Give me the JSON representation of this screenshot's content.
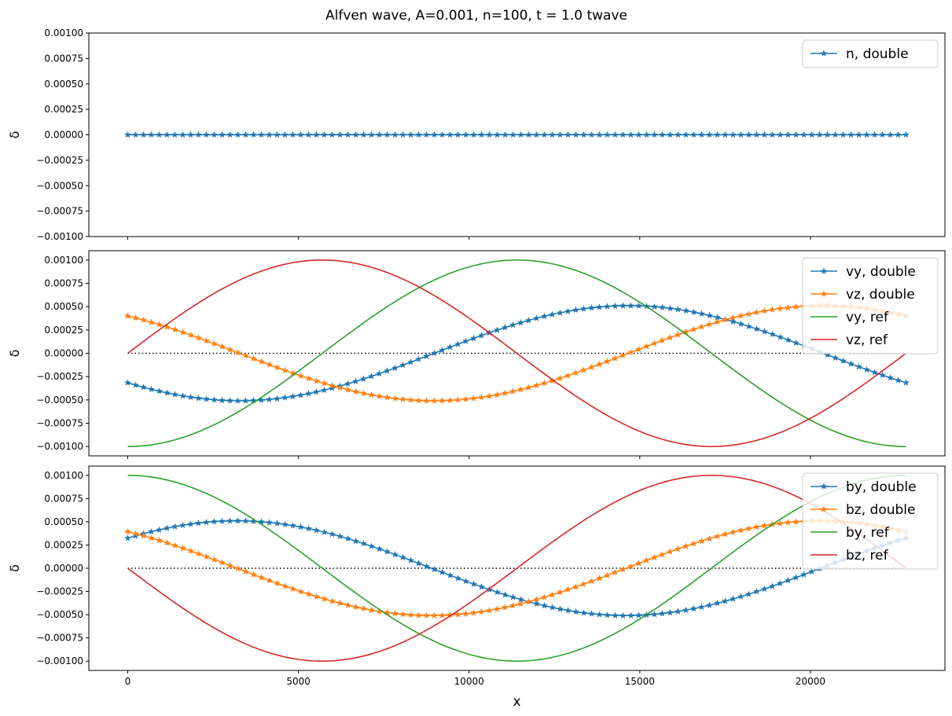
{
  "figure": {
    "title": "Alfven wave, A=0.001, n=100, t = 1.0 twave"
  },
  "colors": {
    "blue": "#1f77b4",
    "orange": "#ff7f0e",
    "green": "#2ca02c",
    "red": "#d62728",
    "zero_line": "#000000"
  },
  "chart_data": [
    {
      "type": "line",
      "panel": "top",
      "xlabel": "",
      "ylabel": "δ",
      "xlim": [
        -1140,
        23940
      ],
      "ylim": [
        -0.001,
        0.001
      ],
      "xticks": [
        0,
        5000,
        10000,
        15000,
        20000
      ],
      "show_xticklabels": false,
      "yticks": [
        -0.001,
        -0.00075,
        -0.0005,
        -0.00025,
        0,
        0.00025,
        0.0005,
        0.00075,
        0.001
      ],
      "ytick_labels": [
        "−0.00100",
        "−0.00075",
        "−0.00050",
        "−0.00025",
        "0.00000",
        "0.00025",
        "0.00050",
        "0.00075",
        "0.00100"
      ],
      "grid": false,
      "legend_position": "top-right",
      "zero_line": false,
      "series": [
        {
          "name": "n, double",
          "color": "#1f77b4",
          "marker": "star",
          "points": 100,
          "x_start": 0,
          "x_end": 22800,
          "amplitude": 0,
          "phase": 0
        }
      ]
    },
    {
      "type": "line",
      "panel": "middle",
      "xlabel": "",
      "ylabel": "δ",
      "xlim": [
        -1140,
        23940
      ],
      "ylim": [
        -0.0011,
        0.0011
      ],
      "xticks": [
        0,
        5000,
        10000,
        15000,
        20000
      ],
      "show_xticklabels": false,
      "yticks": [
        -0.001,
        -0.00075,
        -0.0005,
        -0.00025,
        0,
        0.00025,
        0.0005,
        0.00075,
        0.001
      ],
      "ytick_labels": [
        "−0.00100",
        "−0.00075",
        "−0.00050",
        "−0.00025",
        "0.00000",
        "0.00025",
        "0.00050",
        "0.00075",
        "0.00100"
      ],
      "grid": false,
      "legend_position": "top-right",
      "zero_line": true,
      "series": [
        {
          "name": "vy, double",
          "color": "#1f77b4",
          "marker": "star",
          "points": 100,
          "x_start": 0,
          "x_end": 22800,
          "amplitude": 0.00051,
          "phase": 3.81
        },
        {
          "name": "vz, double",
          "color": "#ff7f0e",
          "marker": "star",
          "points": 100,
          "x_start": 0,
          "x_end": 22800,
          "amplitude": 0.00051,
          "phase": 2.24
        },
        {
          "name": "vy, ref",
          "color": "#2ca02c",
          "marker": "none",
          "points": 200,
          "x_start": 0,
          "x_end": 22800,
          "amplitude": 0.001,
          "phase": 4.712
        },
        {
          "name": "vz, ref",
          "color": "#d62728",
          "marker": "none",
          "points": 200,
          "x_start": 0,
          "x_end": 22800,
          "amplitude": 0.001,
          "phase": 0
        }
      ]
    },
    {
      "type": "line",
      "panel": "bottom",
      "xlabel": "x",
      "ylabel": "δ",
      "xlim": [
        -1140,
        23940
      ],
      "ylim": [
        -0.0011,
        0.0011
      ],
      "xticks": [
        0,
        5000,
        10000,
        15000,
        20000
      ],
      "xtick_labels": [
        "0",
        "5000",
        "10000",
        "15000",
        "20000"
      ],
      "show_xticklabels": true,
      "yticks": [
        -0.001,
        -0.00075,
        -0.0005,
        -0.00025,
        0,
        0.00025,
        0.0005,
        0.00075,
        0.001
      ],
      "ytick_labels": [
        "−0.00100",
        "−0.00075",
        "−0.00050",
        "−0.00025",
        "0.00000",
        "0.00025",
        "0.00050",
        "0.00075",
        "0.00100"
      ],
      "grid": false,
      "legend_position": "top-right",
      "zero_line": true,
      "series": [
        {
          "name": "by, double",
          "color": "#1f77b4",
          "marker": "star",
          "points": 100,
          "x_start": 0,
          "x_end": 22800,
          "amplitude": 0.00051,
          "phase": 0.69
        },
        {
          "name": "bz, double",
          "color": "#ff7f0e",
          "marker": "star",
          "points": 100,
          "x_start": 0,
          "x_end": 22800,
          "amplitude": 0.00051,
          "phase": 2.26
        },
        {
          "name": "by, ref",
          "color": "#2ca02c",
          "marker": "none",
          "points": 200,
          "x_start": 0,
          "x_end": 22800,
          "amplitude": 0.001,
          "phase": 1.5708
        },
        {
          "name": "bz, ref",
          "color": "#d62728",
          "marker": "none",
          "points": 200,
          "x_start": 0,
          "x_end": 22800,
          "amplitude": 0.001,
          "phase": 3.1416
        }
      ]
    }
  ]
}
